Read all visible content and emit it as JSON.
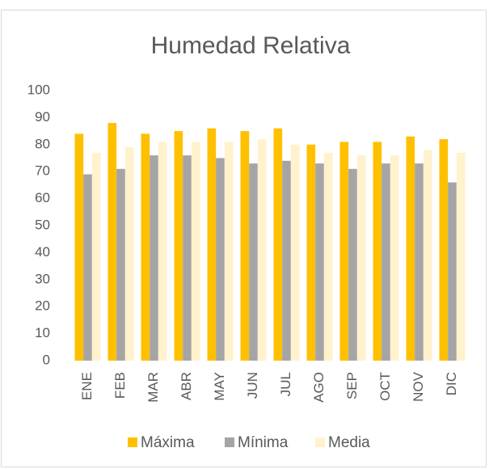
{
  "chart_data": {
    "type": "bar",
    "title": "Humedad Relativa",
    "categories": [
      "ENE",
      "FEB",
      "MAR",
      "ABR",
      "MAY",
      "JUN",
      "JUL",
      "AGO",
      "SEP",
      "OCT",
      "NOV",
      "DIC"
    ],
    "series": [
      {
        "name": "Máxima",
        "color": "#ffc000",
        "values": [
          84,
          88,
          84,
          85,
          86,
          85,
          86,
          80,
          81,
          81,
          83,
          82
        ]
      },
      {
        "name": "Mínima",
        "color": "#a5a5a5",
        "values": [
          69,
          71,
          76,
          76,
          75,
          73,
          74,
          73,
          71,
          73,
          73,
          66
        ]
      },
      {
        "name": "Media",
        "color": "#fff2cc",
        "values": [
          77,
          79,
          81,
          81,
          81,
          82,
          80,
          77,
          76,
          76,
          78,
          77
        ]
      }
    ],
    "ylim": [
      0,
      100
    ],
    "yticks": [
      0,
      10,
      20,
      30,
      40,
      50,
      60,
      70,
      80,
      90,
      100
    ],
    "grid": false,
    "legend": "bottom"
  }
}
